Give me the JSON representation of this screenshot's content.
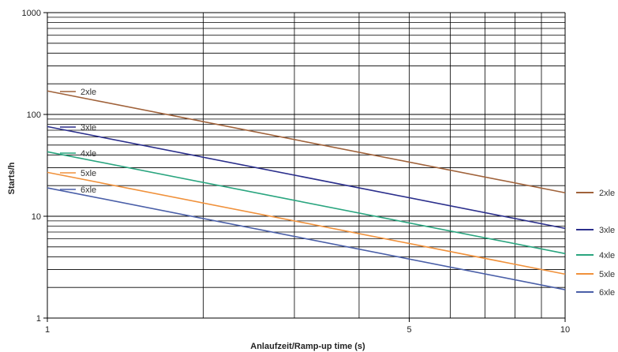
{
  "chart_data": {
    "type": "line",
    "xlabel": "Anlaufzeit/Ramp-up time (s)",
    "ylabel": "Starts/h",
    "xscale": "log",
    "yscale": "log",
    "xlim": [
      1,
      10
    ],
    "ylim": [
      1,
      1000
    ],
    "x_tick_labels": [
      "1",
      "5",
      "10"
    ],
    "y_tick_labels": [
      "1",
      "10",
      "100",
      "1000"
    ],
    "grid": true,
    "legend_position": "right",
    "series": [
      {
        "name": "2xle",
        "color": "#a0623a",
        "x": [
          1,
          10
        ],
        "y": [
          170,
          17
        ]
      },
      {
        "name": "3xle",
        "color": "#2b2f8c",
        "x": [
          1,
          10
        ],
        "y": [
          76,
          7.6
        ]
      },
      {
        "name": "4xle",
        "color": "#2aa57f",
        "x": [
          1,
          10
        ],
        "y": [
          43,
          4.3
        ]
      },
      {
        "name": "5xle",
        "color": "#f0913b",
        "x": [
          1,
          10
        ],
        "y": [
          27,
          2.7
        ]
      },
      {
        "name": "6xle",
        "color": "#4a5fa8",
        "x": [
          1,
          10
        ],
        "y": [
          19,
          1.9
        ]
      }
    ]
  }
}
